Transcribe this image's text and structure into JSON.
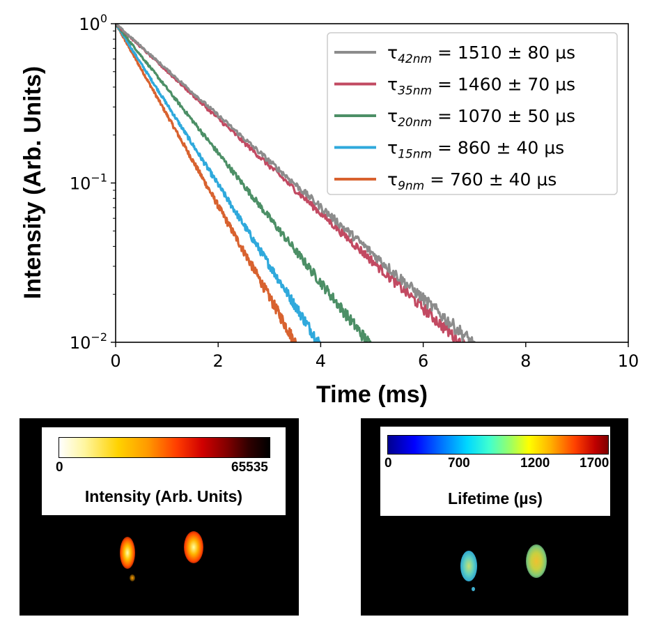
{
  "chart_data": {
    "type": "line",
    "xlabel": "Time (ms)",
    "ylabel": "Intensity (Arb. Units)",
    "xlim": [
      0,
      10
    ],
    "ylim": [
      0.01,
      1
    ],
    "yscale": "log",
    "x_ticks": [
      "0",
      "2",
      "4",
      "6",
      "8",
      "10"
    ],
    "y_ticks": [
      {
        "base": "10",
        "exp": "0"
      },
      {
        "base": "10",
        "exp": "−1"
      },
      {
        "base": "10",
        "exp": "−2"
      }
    ],
    "grid": false,
    "legend_position": "top-right",
    "series": [
      {
        "name": "τ_42nm = 1510 ± 80 µs",
        "label_main": "τ",
        "label_sub": "42nm",
        "label_rest": " = 1510 ± 80 µs",
        "color": "#8c8c8c",
        "lifetime_ms": 1.51,
        "x_end": 7.0
      },
      {
        "name": "τ_35nm = 1460 ± 70 µs",
        "label_main": "τ",
        "label_sub": "35nm",
        "label_rest": " = 1460 ± 70 µs",
        "color": "#c24a62",
        "lifetime_ms": 1.46,
        "x_end": 7.1
      },
      {
        "name": "τ_20nm = 1070 ± 50 µs",
        "label_main": "τ",
        "label_sub": "20nm",
        "label_rest": " = 1070 ± 50 µs",
        "color": "#4c8f66",
        "lifetime_ms": 1.07,
        "x_end": 5.35
      },
      {
        "name": "τ_15nm = 860 ± 40 µs",
        "label_main": "τ",
        "label_sub": "15nm",
        "label_rest": " = 860 ± 40 µs",
        "color": "#2fa9dc",
        "lifetime_ms": 0.86,
        "x_end": 4.5
      },
      {
        "name": "τ_9nm = 760 ± 40 µs",
        "label_main": "τ",
        "label_sub": "9nm",
        "label_rest": " = 760 ± 40 µs",
        "color": "#d8622f",
        "lifetime_ms": 0.76,
        "x_end": 3.85
      }
    ]
  },
  "images": {
    "intensity": {
      "colorbar_min": "0",
      "colorbar_max": "65535",
      "colorbar_title": "Intensity (Arb. Units)"
    },
    "lifetime": {
      "colorbar_ticks": [
        "0",
        "700",
        "1200",
        "1700"
      ],
      "colorbar_title": "Lifetime (µs)"
    }
  }
}
